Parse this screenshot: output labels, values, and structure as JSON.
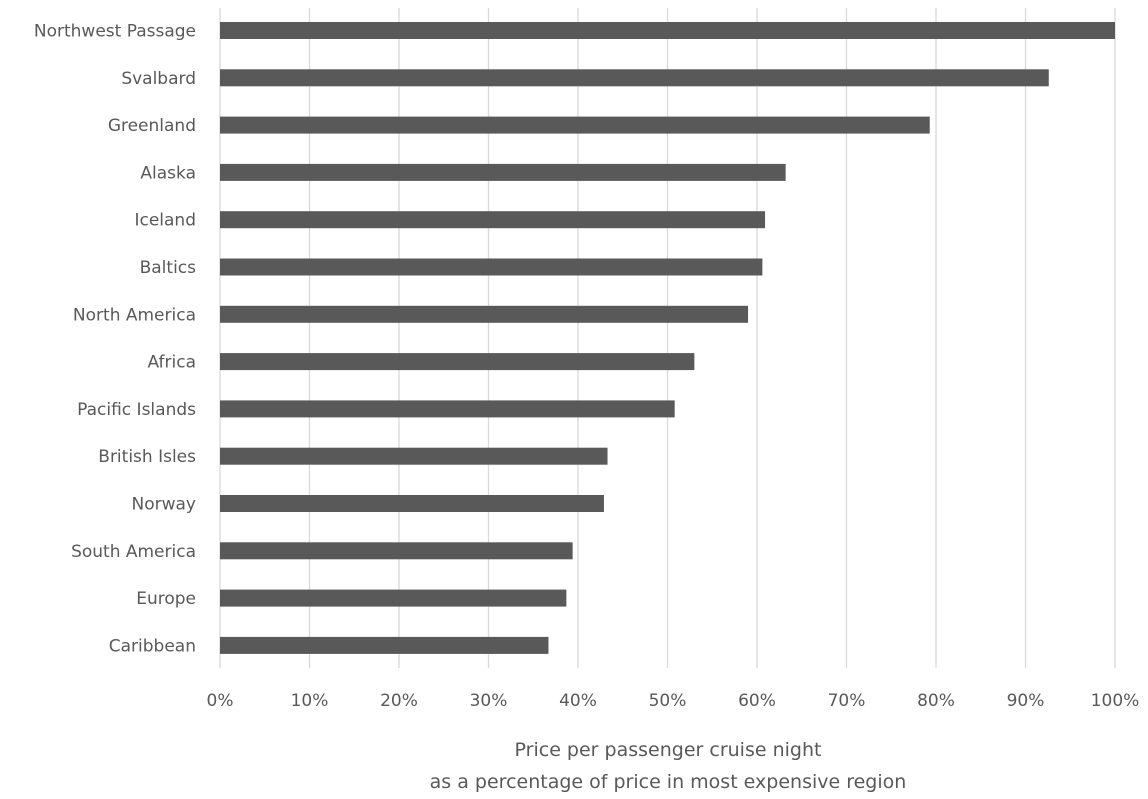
{
  "chart_data": {
    "type": "bar",
    "orientation": "horizontal",
    "categories": [
      "Northwest Passage",
      "Svalbard",
      "Greenland",
      "Alaska",
      "Iceland",
      "Baltics",
      "North America",
      "Africa",
      "Pacific Islands",
      "British Isles",
      "Norway",
      "South America",
      "Europe",
      "Caribbean"
    ],
    "values": [
      100,
      92.6,
      79.3,
      63.2,
      60.9,
      60.6,
      59.0,
      53.0,
      50.8,
      43.3,
      42.9,
      39.4,
      38.7,
      36.7
    ],
    "title": "",
    "xlabel": "Price per passenger cruise night",
    "xlabel_line2": "as a percentage of price in most expensive region",
    "ylabel": "",
    "xlim": [
      0,
      100
    ],
    "x_ticks": [
      "0%",
      "10%",
      "20%",
      "30%",
      "40%",
      "50%",
      "60%",
      "70%",
      "80%",
      "90%",
      "100%"
    ],
    "grid": "vertical",
    "legend": "none",
    "bar_color": "#595959",
    "grid_color": "#d9d9d9",
    "text_color": "#595959"
  }
}
